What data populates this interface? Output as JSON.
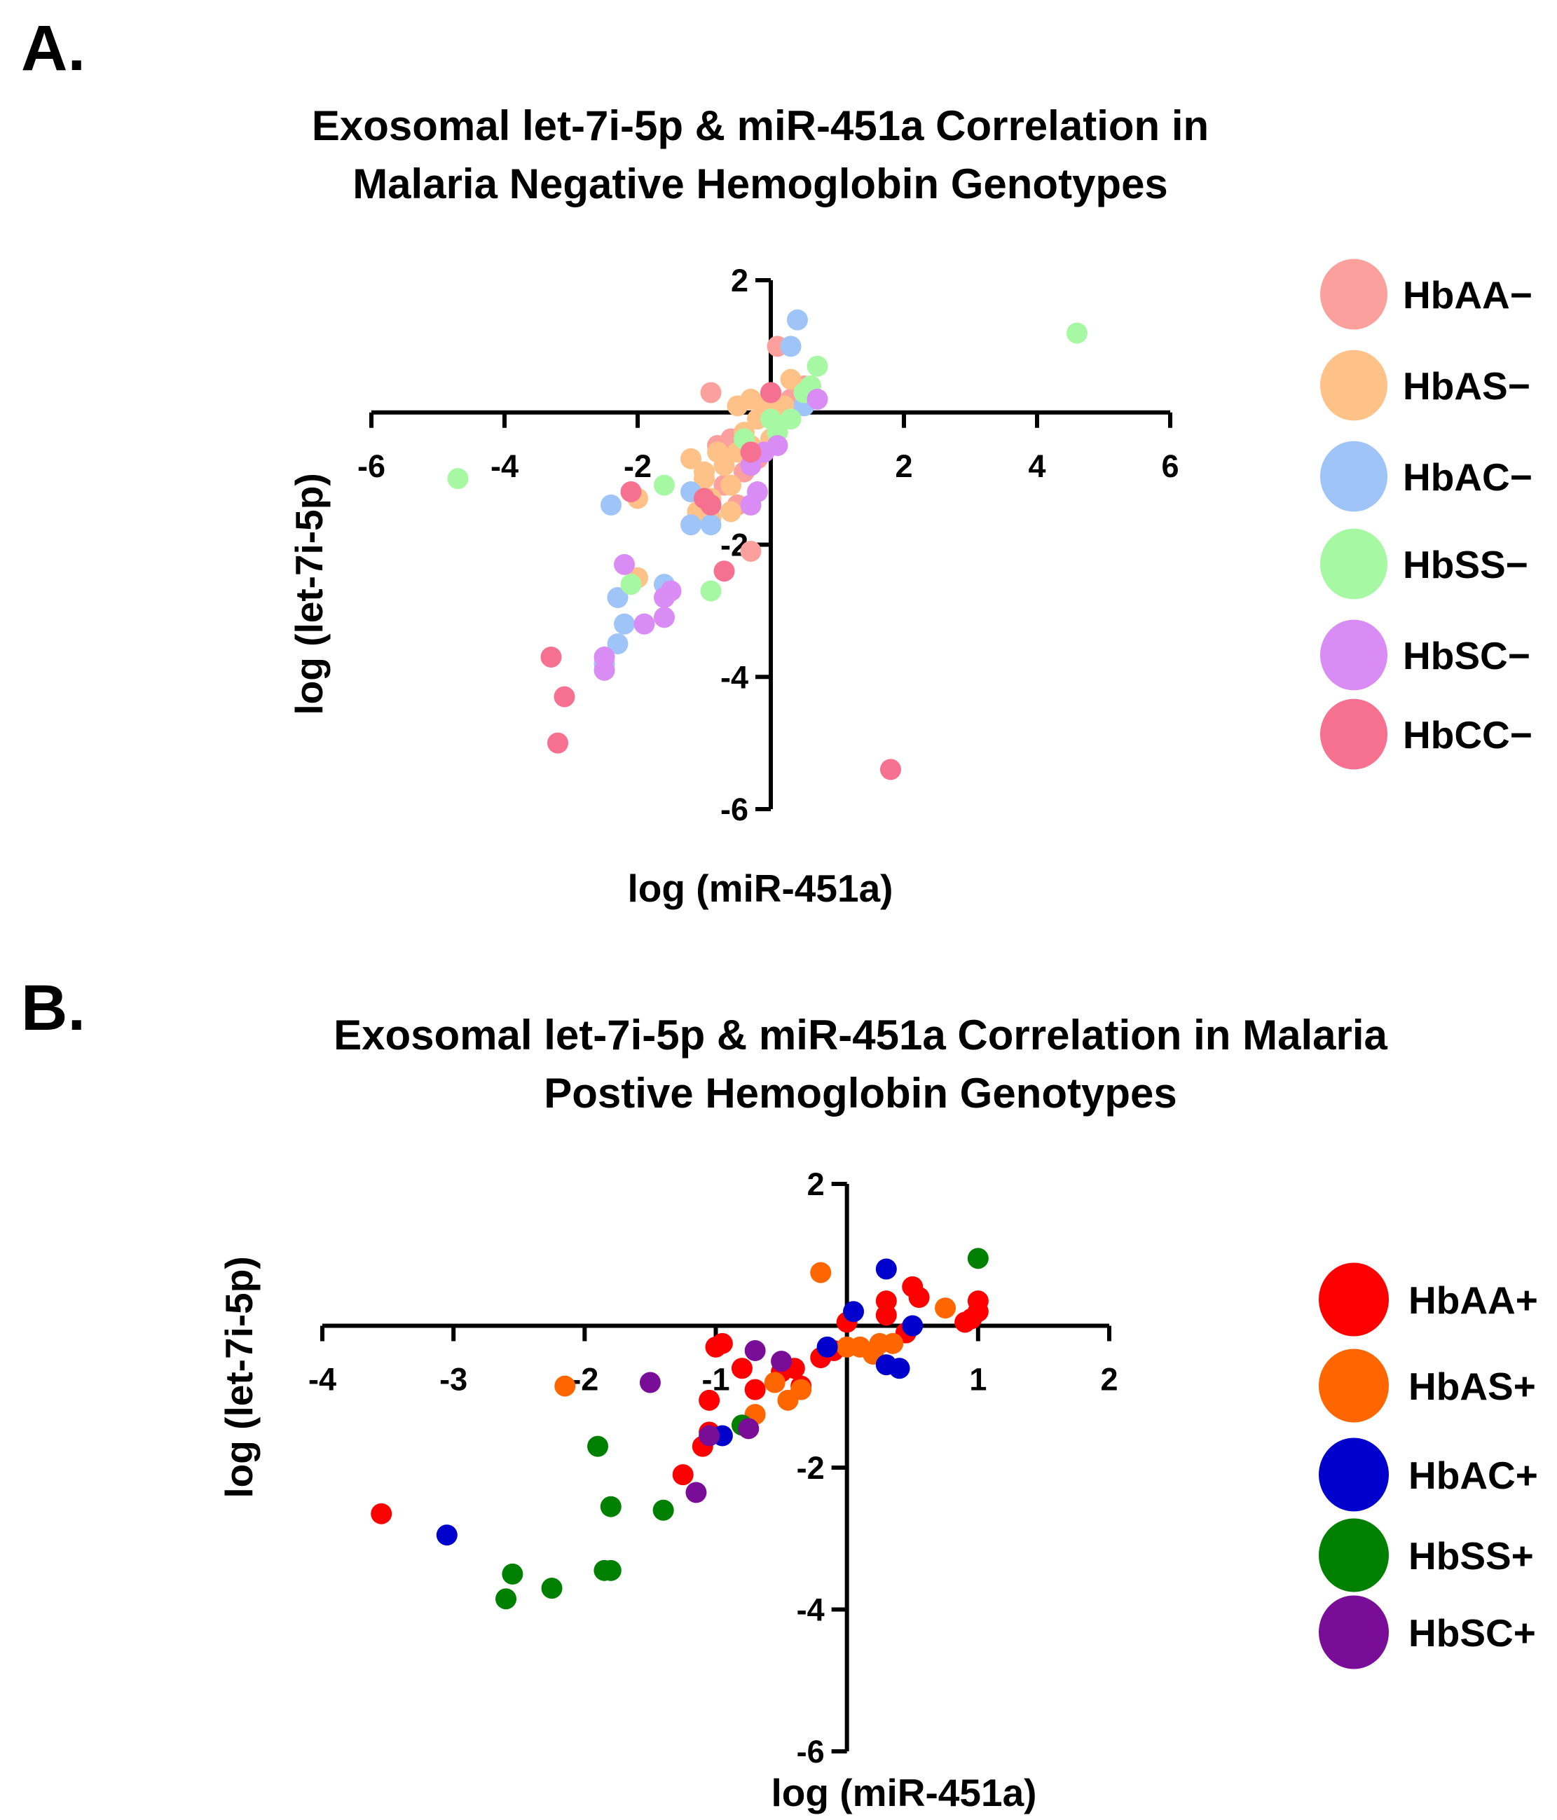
{
  "chart_data": [
    {
      "panel": "A.",
      "type": "scatter",
      "title": [
        "Exosomal let-7i-5p & miR-451a Correlation in",
        "Malaria Negative Hemoglobin  Genotypes"
      ],
      "xlabel": "log (miR-451a)",
      "ylabel": "log (let-7i-5p)",
      "xlim": [
        -6,
        6
      ],
      "ylim": [
        -6,
        2
      ],
      "xticks": [
        -6,
        -4,
        -2,
        2,
        4,
        6
      ],
      "yticks": [
        2,
        -2,
        -4,
        -6
      ],
      "series": [
        {
          "name": "HbAA−",
          "color": "#fba09d",
          "points": [
            [
              -0.9,
              0.3
            ],
            [
              0.1,
              1.0
            ],
            [
              -0.6,
              -0.4
            ],
            [
              -0.4,
              -0.9
            ],
            [
              -0.7,
              -1.1
            ],
            [
              -0.5,
              -1.4
            ],
            [
              -0.3,
              -2.1
            ],
            [
              0.5,
              0.4
            ],
            [
              0.0,
              0.3
            ],
            [
              -0.8,
              -0.5
            ],
            [
              0.3,
              0.2
            ],
            [
              -0.2,
              -0.7
            ]
          ]
        },
        {
          "name": "HbAS−",
          "color": "#fec288",
          "points": [
            [
              -0.5,
              0.1
            ],
            [
              -0.3,
              0.2
            ],
            [
              0.0,
              0.3
            ],
            [
              0.2,
              0.1
            ],
            [
              0.5,
              0.35
            ],
            [
              0.6,
              0.4
            ],
            [
              -0.8,
              -0.6
            ],
            [
              -1.0,
              -0.9
            ],
            [
              -0.9,
              -1.3
            ],
            [
              -1.1,
              -1.5
            ],
            [
              -0.6,
              -1.1
            ],
            [
              -0.4,
              -0.3
            ],
            [
              -0.2,
              -0.1
            ],
            [
              0.1,
              -0.2
            ],
            [
              -0.7,
              -0.8
            ],
            [
              -0.5,
              -0.6
            ],
            [
              -1.0,
              -1.0
            ],
            [
              -0.3,
              -0.5
            ],
            [
              0.0,
              -0.4
            ],
            [
              -2.0,
              -1.3
            ],
            [
              -2.0,
              -2.5
            ],
            [
              -0.9,
              -1.6
            ],
            [
              -0.6,
              -1.5
            ],
            [
              -1.2,
              -0.7
            ],
            [
              0.3,
              0.5
            ],
            [
              -0.1,
              0.1
            ]
          ]
        },
        {
          "name": "HbAC−",
          "color": "#9fc5f8",
          "points": [
            [
              0.4,
              1.4
            ],
            [
              0.3,
              1.0
            ],
            [
              -2.4,
              -1.4
            ],
            [
              -1.2,
              -1.2
            ],
            [
              -1.2,
              -1.7
            ],
            [
              -0.9,
              -1.7
            ],
            [
              -2.3,
              -2.8
            ],
            [
              -2.2,
              -3.2
            ],
            [
              -1.6,
              -2.6
            ],
            [
              -2.3,
              -3.5
            ],
            [
              -2.5,
              -3.8
            ],
            [
              0.5,
              0.1
            ]
          ]
        },
        {
          "name": "HbSS−",
          "color": "#a7f8a3",
          "points": [
            [
              4.6,
              1.2
            ],
            [
              -4.7,
              -1.0
            ],
            [
              -1.6,
              -1.1
            ],
            [
              -0.9,
              -2.7
            ],
            [
              -2.1,
              -2.6
            ],
            [
              0.7,
              0.7
            ],
            [
              0.6,
              0.4
            ],
            [
              0.5,
              0.3
            ],
            [
              0.1,
              -0.3
            ],
            [
              0.3,
              -0.1
            ],
            [
              -0.4,
              -0.4
            ],
            [
              0.0,
              -0.1
            ]
          ]
        },
        {
          "name": "HbSC−",
          "color": "#d98cf4",
          "points": [
            [
              -2.2,
              -2.3
            ],
            [
              -1.6,
              -2.8
            ],
            [
              -1.5,
              -2.7
            ],
            [
              -1.6,
              -3.1
            ],
            [
              -1.9,
              -3.2
            ],
            [
              -2.5,
              -3.7
            ],
            [
              -2.5,
              -3.9
            ],
            [
              -0.3,
              -0.8
            ],
            [
              -0.2,
              -1.2
            ],
            [
              -0.3,
              -1.4
            ],
            [
              -0.1,
              -0.6
            ],
            [
              0.1,
              -0.5
            ],
            [
              0.7,
              0.2
            ]
          ]
        },
        {
          "name": "HbCC−",
          "color": "#f5718f",
          "points": [
            [
              -2.1,
              -1.2
            ],
            [
              -0.9,
              -1.4
            ],
            [
              -1.0,
              -1.3
            ],
            [
              -0.7,
              -2.4
            ],
            [
              -3.3,
              -3.7
            ],
            [
              -3.1,
              -4.3
            ],
            [
              -3.2,
              -5.0
            ],
            [
              1.8,
              -5.4
            ],
            [
              0.0,
              0.3
            ],
            [
              -0.3,
              -0.6
            ]
          ]
        }
      ]
    },
    {
      "panel": "B.",
      "type": "scatter",
      "title": [
        "Exosomal let-7i-5p & miR-451a Correlation in Malaria",
        "Postive Hemoglobin Genotypes"
      ],
      "xlabel": "log (miR-451a)",
      "ylabel": "log (let-7i-5p)",
      "xlim": [
        -4,
        2
      ],
      "ylim": [
        -6,
        2
      ],
      "xticks": [
        -4,
        -3,
        -2,
        -1,
        1,
        2
      ],
      "yticks": [
        2,
        -2,
        -4,
        -6
      ],
      "series": [
        {
          "name": "HbAA+",
          "color": "#ff0000",
          "points": [
            [
              -0.95,
              -0.25
            ],
            [
              -1.0,
              -0.3
            ],
            [
              -0.8,
              -0.6
            ],
            [
              -0.7,
              -0.9
            ],
            [
              -0.5,
              -0.65
            ],
            [
              -0.4,
              -0.6
            ],
            [
              -0.35,
              -0.85
            ],
            [
              -0.2,
              -0.45
            ],
            [
              -1.05,
              -1.05
            ],
            [
              -1.1,
              -1.7
            ],
            [
              -1.25,
              -2.1
            ],
            [
              -3.55,
              -2.65
            ],
            [
              0.0,
              0.05
            ],
            [
              0.3,
              0.35
            ],
            [
              0.3,
              0.15
            ],
            [
              0.5,
              0.55
            ],
            [
              0.55,
              0.4
            ],
            [
              0.9,
              0.05
            ],
            [
              0.95,
              0.1
            ],
            [
              1.0,
              0.35
            ],
            [
              1.0,
              0.2
            ],
            [
              -0.1,
              -0.35
            ],
            [
              0.45,
              -0.1
            ],
            [
              -1.05,
              -1.5
            ]
          ]
        },
        {
          "name": "HbAS+",
          "color": "#ff6600",
          "points": [
            [
              -0.2,
              0.75
            ],
            [
              -2.15,
              -0.85
            ],
            [
              0.2,
              -0.4
            ],
            [
              0.1,
              -0.3
            ],
            [
              0.25,
              -0.25
            ],
            [
              0.35,
              -0.25
            ],
            [
              -0.35,
              -0.9
            ],
            [
              -0.45,
              -1.05
            ],
            [
              -0.7,
              -1.25
            ],
            [
              0.0,
              -0.3
            ],
            [
              0.75,
              0.25
            ],
            [
              -0.55,
              -0.8
            ]
          ]
        },
        {
          "name": "HbAC+",
          "color": "#0000cc",
          "points": [
            [
              0.3,
              0.8
            ],
            [
              0.05,
              0.2
            ],
            [
              -0.15,
              -0.3
            ],
            [
              0.5,
              0.0
            ],
            [
              0.3,
              -0.55
            ],
            [
              0.4,
              -0.6
            ],
            [
              -0.95,
              -1.55
            ],
            [
              -3.05,
              -2.95
            ]
          ]
        },
        {
          "name": "HbSS+",
          "color": "#008000",
          "points": [
            [
              1.0,
              0.95
            ],
            [
              -1.9,
              -1.7
            ],
            [
              -1.8,
              -2.55
            ],
            [
              -1.4,
              -2.6
            ],
            [
              -1.85,
              -3.45
            ],
            [
              -1.8,
              -3.45
            ],
            [
              -2.55,
              -3.5
            ],
            [
              -2.25,
              -3.7
            ],
            [
              -2.6,
              -3.85
            ],
            [
              -0.8,
              -1.4
            ]
          ]
        },
        {
          "name": "HbSC+",
          "color": "#7a0d98",
          "points": [
            [
              -0.7,
              -0.35
            ],
            [
              -0.5,
              -0.5
            ],
            [
              -1.5,
              -0.8
            ],
            [
              -1.05,
              -1.55
            ],
            [
              -0.75,
              -1.45
            ],
            [
              -1.15,
              -2.35
            ]
          ]
        }
      ]
    }
  ]
}
